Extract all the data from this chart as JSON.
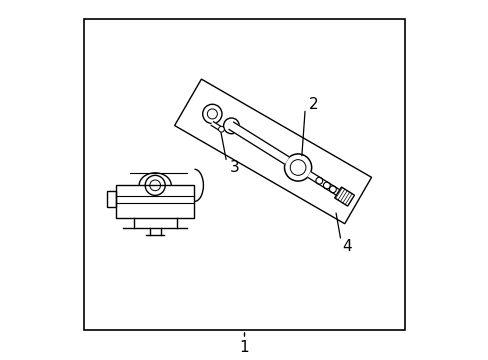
{
  "bg_color": "#ffffff",
  "border_color": "#000000",
  "line_color": "#000000",
  "figure_size": [
    4.89,
    3.6
  ],
  "dpi": 100,
  "label_1": "1",
  "label_2": "2",
  "label_3": "3",
  "label_4": "4",
  "font_size": 11,
  "border_lw": 1.2,
  "part_lw": 1.0
}
